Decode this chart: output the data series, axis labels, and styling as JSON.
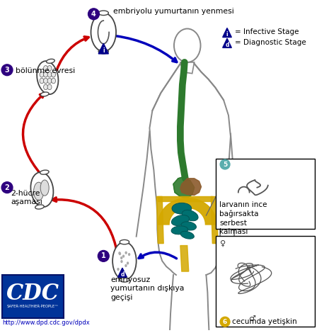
{
  "bg_color": "#ffffff",
  "figsize": [
    4.58,
    4.7
  ],
  "dpi": 100,
  "labels": {
    "label1_top": "embriyolu yumurtanın yenmesi",
    "label3_text": "bölünme evresi",
    "label2_text": "2-hücre\naşaması",
    "label1_text": "emriyosuz\nyumurtanın dışkıya\ngeçişi",
    "label5_text": "larvanın ince\nbağırsakta\nserbest\nkalması",
    "label6_text": "cecumda yetişkin",
    "legend1": "= Infective Stage",
    "legend2": "= Diagnostic Stage",
    "cdc_url": "http://www.dpd.cdc.gov/dpdx",
    "cdc_sub": "SAFER·HEALTHIER·PEOPLE™"
  },
  "numbers": {
    "n1": "1",
    "n2": "2",
    "n3": "3",
    "n4": "4",
    "n5": "5",
    "n6": "6"
  },
  "numcol": "#2e007f",
  "red": "#cc0000",
  "blue": "#0000bb",
  "organ_green": "#2d7a2d",
  "organ_brown": "#8b5a2b",
  "organ_yellow": "#d4a800",
  "organ_teal": "#007070",
  "cdc_blue": "#003399",
  "box_teal": "#5aadad"
}
